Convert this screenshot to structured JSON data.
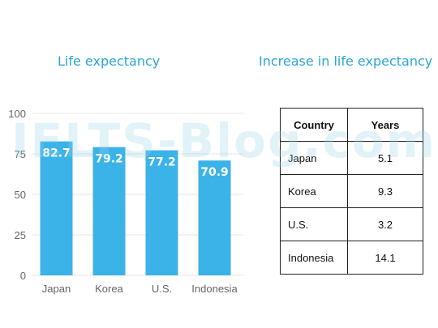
{
  "chart_data": {
    "type": "bar",
    "title": "Life expectancy",
    "categories": [
      "Japan",
      "Korea",
      "U.S.",
      "Indonesia"
    ],
    "values": [
      82.7,
      79.2,
      77.2,
      70.9
    ],
    "data_labels": [
      "82.7",
      "79.2",
      "77.2",
      "70.9"
    ],
    "ylim": [
      0,
      100
    ],
    "yticks": [
      0,
      25,
      50,
      75,
      100
    ],
    "grid": true,
    "bar_color": "#3bb3e8",
    "label_color": "#ffffff"
  },
  "table": {
    "title": "Increase in life expectancy",
    "headers": [
      "Country",
      "Years"
    ],
    "rows": [
      [
        "Japan",
        "5.1"
      ],
      [
        "Korea",
        "9.3"
      ],
      [
        "U.S.",
        "3.2"
      ],
      [
        "Indonesia",
        "14.1"
      ]
    ]
  },
  "watermark": "IELTS-Blog.com",
  "colors": {
    "title": "#2aa6d5",
    "grid": "#e4e4e4",
    "axis_text": "#666666"
  }
}
